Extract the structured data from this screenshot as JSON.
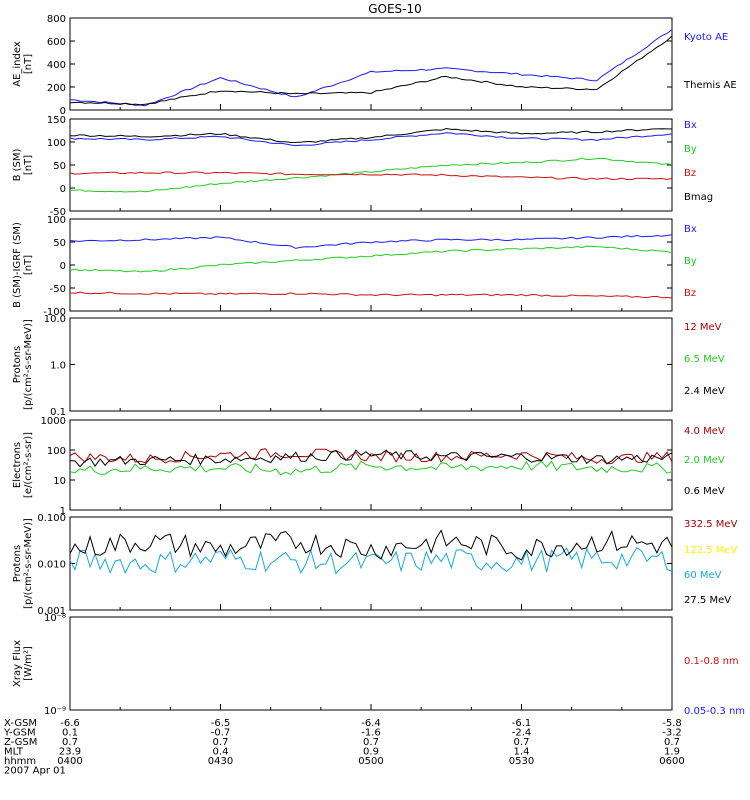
{
  "title": "GOES-10",
  "colors": {
    "black": "#000000",
    "blue": "#1a1aff",
    "green": "#22cc22",
    "red": "#cc1111",
    "darkred": "#aa0000",
    "yellow": "#ffee00",
    "cyan": "#11aadd"
  },
  "chart_data": [
    {
      "type": "line",
      "ylabel": [
        "AE_index",
        "[nT]"
      ],
      "ylim": [
        0,
        800
      ],
      "yticks": [
        "0",
        "200",
        "400",
        "600",
        "800"
      ],
      "x": [
        0,
        15,
        30,
        45,
        60,
        75,
        90,
        105,
        120
      ],
      "series": [
        {
          "name": "Kyoto AE",
          "color": "blue",
          "values": [
            90,
            40,
            280,
            110,
            330,
            360,
            310,
            260,
            700
          ]
        },
        {
          "name": "Themis AE",
          "color": "black",
          "values": [
            70,
            50,
            170,
            140,
            150,
            290,
            200,
            180,
            640
          ]
        }
      ]
    },
    {
      "type": "line",
      "ylabel": [
        "B (SM)",
        "[nT]"
      ],
      "ylim": [
        -50,
        150
      ],
      "yticks": [
        "-50",
        "0",
        "50",
        "100",
        "150"
      ],
      "x": [
        0,
        15,
        30,
        45,
        60,
        75,
        90,
        105,
        120
      ],
      "series": [
        {
          "name": "Bx",
          "color": "blue",
          "values": [
            108,
            105,
            112,
            92,
            105,
            120,
            108,
            105,
            118
          ]
        },
        {
          "name": "By",
          "color": "green",
          "values": [
            -5,
            -8,
            10,
            22,
            35,
            50,
            55,
            65,
            50
          ]
        },
        {
          "name": "Bz",
          "color": "red",
          "values": [
            32,
            33,
            33,
            30,
            30,
            28,
            23,
            20,
            20
          ]
        },
        {
          "name": "Bmag",
          "color": "black",
          "values": [
            115,
            112,
            118,
            98,
            110,
            128,
            118,
            122,
            130
          ]
        }
      ]
    },
    {
      "type": "line",
      "ylabel": [
        "B (SM)-IGRF (SM)",
        "[nT]"
      ],
      "ylim": [
        -100,
        100
      ],
      "yticks": [
        "-100",
        "-50",
        "0",
        "50",
        "100"
      ],
      "x": [
        0,
        15,
        30,
        45,
        60,
        75,
        90,
        105,
        120
      ],
      "series": [
        {
          "name": "Bx",
          "color": "blue",
          "values": [
            52,
            55,
            60,
            38,
            50,
            55,
            55,
            60,
            65
          ]
        },
        {
          "name": "By",
          "color": "green",
          "values": [
            -10,
            -15,
            0,
            10,
            20,
            30,
            35,
            40,
            28
          ]
        },
        {
          "name": "Bz",
          "color": "red",
          "values": [
            -60,
            -62,
            -63,
            -62,
            -65,
            -65,
            -65,
            -68,
            -70
          ]
        }
      ]
    },
    {
      "type": "line",
      "ylabel": [
        "Protons",
        "[p/(cm²-s-sr-MeV)]"
      ],
      "ylim": [
        0.1,
        10
      ],
      "yscale": "log",
      "yticks": [
        "0.1",
        "1.0",
        "10.0"
      ],
      "series": [
        {
          "name": "12 MeV",
          "color": "darkred",
          "values": []
        },
        {
          "name": "6.5 MeV",
          "color": "green",
          "values": []
        },
        {
          "name": "2.4 MeV",
          "color": "black",
          "values": []
        }
      ]
    },
    {
      "type": "line",
      "ylabel": [
        "Electrons",
        "[e/(cm²-s-sr)]"
      ],
      "ylim": [
        1,
        1000
      ],
      "yscale": "log",
      "yticks": [
        "1",
        "10",
        "100",
        "1000"
      ],
      "series": [
        {
          "name": "4.0 MeV",
          "color": "darkred",
          "values": [
            60,
            50,
            70,
            80,
            60,
            60,
            70,
            50,
            60
          ]
        },
        {
          "name": "2.0 MeV",
          "color": "green",
          "values": [
            20,
            25,
            25,
            20,
            30,
            25,
            30,
            25,
            25
          ]
        },
        {
          "name": "0.6 MeV",
          "color": "black",
          "values": [
            40,
            45,
            50,
            60,
            70,
            60,
            60,
            50,
            55
          ]
        }
      ]
    },
    {
      "type": "line",
      "ylabel": [
        "Protons",
        "[p/(cm²-s-sr-MeV)]"
      ],
      "ylim": [
        0.001,
        0.1
      ],
      "yscale": "log",
      "yticks": [
        "0.001",
        "0.010",
        "0.100"
      ],
      "series": [
        {
          "name": "332.5 MeV",
          "color": "darkred",
          "values": []
        },
        {
          "name": "122.5 MeV",
          "color": "yellow",
          "values": []
        },
        {
          "name": "60 MeV",
          "color": "cyan",
          "values": [
            0.012,
            0.01,
            0.013,
            0.011,
            0.01,
            0.012,
            0.011,
            0.013,
            0.012
          ]
        },
        {
          "name": "27.5 MeV",
          "color": "black",
          "values": [
            0.02,
            0.03,
            0.02,
            0.03,
            0.02,
            0.03,
            0.02,
            0.03,
            0.025
          ]
        }
      ]
    },
    {
      "type": "line",
      "ylabel": [
        "Xray Flux",
        "[W/m²]"
      ],
      "ylim": [
        1e-09,
        1e-08
      ],
      "yscale": "log",
      "yticks": [
        "10⁻⁹",
        "10⁻⁸"
      ],
      "series": [
        {
          "name": "0.1-0.8 nm",
          "color": "red",
          "values": []
        },
        {
          "name": "0.05-0.3 nm",
          "color": "blue",
          "values": []
        }
      ]
    }
  ],
  "xaxis": {
    "rows": [
      {
        "label": "X-GSM",
        "values": [
          "-6.6",
          "-6.5",
          "-6.4",
          "-6.1",
          "-5.8"
        ]
      },
      {
        "label": "Y-GSM",
        "values": [
          "0.1",
          "-0.7",
          "-1.6",
          "-2.4",
          "-3.2"
        ]
      },
      {
        "label": "Z-GSM",
        "values": [
          "0.7",
          "0.7",
          "0.7",
          "0.7",
          "0.7"
        ]
      },
      {
        "label": "MLT",
        "values": [
          "23.9",
          "0.4",
          "0.9",
          "1.4",
          "1.9"
        ]
      },
      {
        "label": "hhmm",
        "values": [
          "0400",
          "0430",
          "0500",
          "0530",
          "0600"
        ]
      }
    ],
    "date": "2007 Apr 01"
  }
}
